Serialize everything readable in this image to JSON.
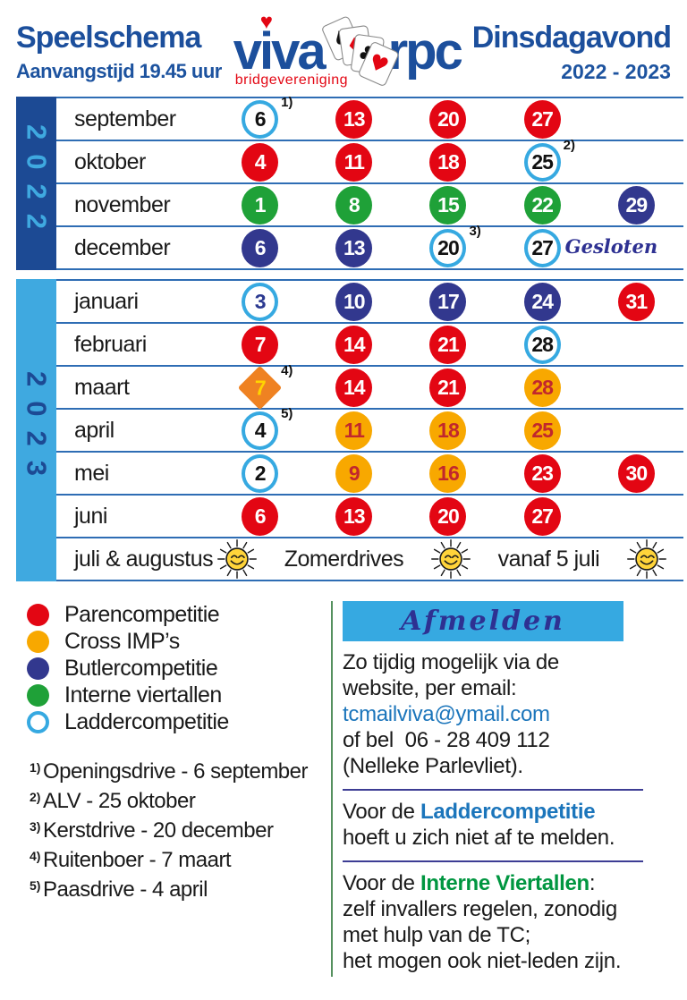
{
  "header": {
    "title": "Speelschema",
    "subtitle": "Aanvangstijd 19.45 uur",
    "right_title": "Dinsdagavond",
    "right_subtitle": "2022 - 2023",
    "logo": {
      "viva": "viva",
      "rpc": "rpc",
      "tagline": "bridgevereniging",
      "heart": "♥"
    }
  },
  "calendar": {
    "sections": [
      {
        "year": "2022",
        "rows": [
          {
            "month": "september",
            "dates": [
              {
                "day": "6",
                "type": "ladder",
                "note": "1)"
              },
              {
                "day": "13",
                "type": "paren"
              },
              {
                "day": "20",
                "type": "paren"
              },
              {
                "day": "27",
                "type": "paren"
              }
            ]
          },
          {
            "month": "oktober",
            "dates": [
              {
                "day": "4",
                "type": "paren"
              },
              {
                "day": "11",
                "type": "paren"
              },
              {
                "day": "18",
                "type": "paren"
              },
              {
                "day": "25",
                "type": "ladder",
                "note": "2)"
              }
            ]
          },
          {
            "month": "november",
            "dates": [
              {
                "day": "1",
                "type": "viertallen"
              },
              {
                "day": "8",
                "type": "viertallen"
              },
              {
                "day": "15",
                "type": "viertallen"
              },
              {
                "day": "22",
                "type": "viertallen"
              },
              {
                "day": "29",
                "type": "butler"
              }
            ]
          },
          {
            "month": "december",
            "dates": [
              {
                "day": "6",
                "type": "butler"
              },
              {
                "day": "13",
                "type": "butler"
              },
              {
                "day": "20",
                "type": "ladder",
                "note": "3)"
              },
              {
                "day": "27",
                "type": "ladder",
                "after": "Gesloten"
              }
            ]
          }
        ]
      },
      {
        "year": "2023",
        "rows": [
          {
            "month": "januari",
            "dates": [
              {
                "day": "3",
                "type": "ladder",
                "text_color": "blue"
              },
              {
                "day": "10",
                "type": "butler"
              },
              {
                "day": "17",
                "type": "butler"
              },
              {
                "day": "24",
                "type": "butler"
              },
              {
                "day": "31",
                "type": "paren"
              }
            ]
          },
          {
            "month": "februari",
            "dates": [
              {
                "day": "7",
                "type": "paren"
              },
              {
                "day": "14",
                "type": "paren"
              },
              {
                "day": "21",
                "type": "paren"
              },
              {
                "day": "28",
                "type": "ladder"
              }
            ]
          },
          {
            "month": "maart",
            "dates": [
              {
                "day": "7",
                "type": "ruitenboer",
                "note": "4)"
              },
              {
                "day": "14",
                "type": "paren"
              },
              {
                "day": "21",
                "type": "paren"
              },
              {
                "day": "28",
                "type": "cross"
              }
            ]
          },
          {
            "month": "april",
            "dates": [
              {
                "day": "4",
                "type": "ladder",
                "note": "5)"
              },
              {
                "day": "11",
                "type": "cross"
              },
              {
                "day": "18",
                "type": "cross"
              },
              {
                "day": "25",
                "type": "cross"
              }
            ]
          },
          {
            "month": "mei",
            "dates": [
              {
                "day": "2",
                "type": "ladder"
              },
              {
                "day": "9",
                "type": "cross"
              },
              {
                "day": "16",
                "type": "cross"
              },
              {
                "day": "23",
                "type": "paren"
              },
              {
                "day": "30",
                "type": "paren"
              }
            ]
          },
          {
            "month": "juni",
            "dates": [
              {
                "day": "6",
                "type": "paren"
              },
              {
                "day": "13",
                "type": "paren"
              },
              {
                "day": "20",
                "type": "paren"
              },
              {
                "day": "27",
                "type": "paren"
              }
            ]
          },
          {
            "month": "juli & augustus",
            "summer": true,
            "items": [
              "sun",
              "Zomerdrives",
              "sun",
              "vanaf 5 juli",
              "sun"
            ]
          }
        ]
      }
    ]
  },
  "legend": [
    {
      "type": "paren",
      "label": "Parencompetitie"
    },
    {
      "type": "cross",
      "label": "Cross IMP’s"
    },
    {
      "type": "butler",
      "label": "Butlercompetitie"
    },
    {
      "type": "viertallen",
      "label": "Interne viertallen"
    },
    {
      "type": "ladder",
      "label": "Laddercompetitie"
    }
  ],
  "footnotes": [
    {
      "mark": "1)",
      "text": "Openingsdrive - 6 september"
    },
    {
      "mark": "2)",
      "text": "ALV - 25 oktober"
    },
    {
      "mark": "3)",
      "text": "Kerstdrive - 20 december"
    },
    {
      "mark": "4)",
      "text": "Ruitenboer - 7 maart"
    },
    {
      "mark": "5)",
      "text": "Paasdrive - 4 april"
    }
  ],
  "afmelden": {
    "title": "Afmelden",
    "line1": "Zo tijdig mogelijk via de",
    "line2": "website, per email:",
    "email": "tcmailviva@ymail.com",
    "line3": "of bel  06 - 28 409 112",
    "line4": "(Nelleke Parlevliet).",
    "ladder_prefix": "Voor de ",
    "ladder_term": "Laddercompetitie",
    "ladder_rest": "hoeft u zich niet af te melden.",
    "viertallen_prefix": "Voor de ",
    "viertallen_term": "Interne Viertallen",
    "viertallen_colon": ":",
    "viertallen_l1": "zelf invallers regelen, zonodig",
    "viertallen_l2": "met hulp van de TC;",
    "viertallen_l3": "het mogen ook niet-leden zijn."
  },
  "colors": {
    "paren_red": "#e30613",
    "cross_orange": "#f8a800",
    "butler_blue": "#32388e",
    "viertallen_green": "#1fa138",
    "ladder_lightblue": "#36a9e1",
    "header_blue": "#1c4f9c",
    "bar_2022_bg": "#1c4a94",
    "bar_2023_bg": "#3fa9e0",
    "script_blue": "#2e3192",
    "email_blue": "#1b75bb",
    "green_term": "#009640",
    "divider_green": "#55915f"
  }
}
